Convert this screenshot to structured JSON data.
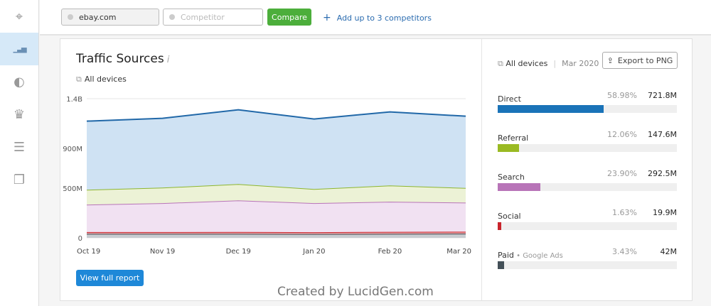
{
  "sidebar": {
    "items": [
      {
        "icon": "telescope-icon",
        "glyph": "⌖"
      },
      {
        "icon": "bar-chart-icon",
        "glyph": "▁▃▅",
        "active": true
      },
      {
        "icon": "pie-icon",
        "glyph": "◐"
      },
      {
        "icon": "trophy-icon",
        "glyph": "♛"
      },
      {
        "icon": "checklist-icon",
        "glyph": "☰"
      },
      {
        "icon": "windows-icon",
        "glyph": "❐"
      }
    ]
  },
  "topbar": {
    "domain_value": "ebay.com",
    "competitor_placeholder": "Competitor",
    "compare_label": "Compare",
    "add_label": "Add up to 3 competitors"
  },
  "card": {
    "title": "Traffic Sources",
    "info": "i",
    "devices": "All devices",
    "report_label": "View full report",
    "credit": "Created by LucidGen.com"
  },
  "right": {
    "devices": "All devices",
    "date": "Mar 2020",
    "export_label": "Export to PNG",
    "rows": [
      {
        "label": "Direct",
        "pct": "58.98%",
        "value": "721.8M",
        "fraction": 0.5898,
        "color": "#1a73b8"
      },
      {
        "label": "Referral",
        "pct": "12.06%",
        "value": "147.6M",
        "fraction": 0.1206,
        "color": "#9aba23"
      },
      {
        "label": "Search",
        "pct": "23.90%",
        "value": "292.5M",
        "fraction": 0.239,
        "color": "#b874b8"
      },
      {
        "label": "Social",
        "pct": "1.63%",
        "value": "19.9M",
        "fraction": 0.0163,
        "color": "#c9252c"
      },
      {
        "label": "Paid",
        "sub": "Google Ads",
        "pct": "3.43%",
        "value": "42M",
        "fraction": 0.0343,
        "color": "#435058"
      }
    ]
  },
  "chart_data": {
    "type": "area",
    "stacked": true,
    "categories": [
      "Oct 19",
      "Nov 19",
      "Dec 19",
      "Jan 20",
      "Feb 20",
      "Mar 20"
    ],
    "yticks": [
      {
        "v": 0,
        "label": "0"
      },
      {
        "v": 500,
        "label": "500M"
      },
      {
        "v": 900,
        "label": "900M"
      },
      {
        "v": 1400,
        "label": "1.4B"
      }
    ],
    "ylim": [
      0,
      1400
    ],
    "unit": "M",
    "series": [
      {
        "name": "Paid",
        "values": [
          40,
          40,
          40,
          38,
          40,
          42
        ],
        "line": "#435058",
        "fill": "#c8ccd0"
      },
      {
        "name": "Social",
        "values": [
          18,
          18,
          19,
          18,
          20,
          19.9
        ],
        "line": "#c9252c",
        "fill": "#e8a0a3"
      },
      {
        "name": "Search",
        "values": [
          276,
          291,
          318,
          293,
          303,
          292.5
        ],
        "line": "#b874b8",
        "fill": "#f1e1f2"
      },
      {
        "name": "Referral",
        "values": [
          150,
          156,
          164,
          142,
          164,
          147.6
        ],
        "line": "#8db52f",
        "fill": "#ecf2d6"
      },
      {
        "name": "Direct",
        "values": [
          690,
          698,
          747,
          705,
          740,
          721.8
        ],
        "line": "#2168a8",
        "fill": "#cfe2f3"
      }
    ]
  }
}
